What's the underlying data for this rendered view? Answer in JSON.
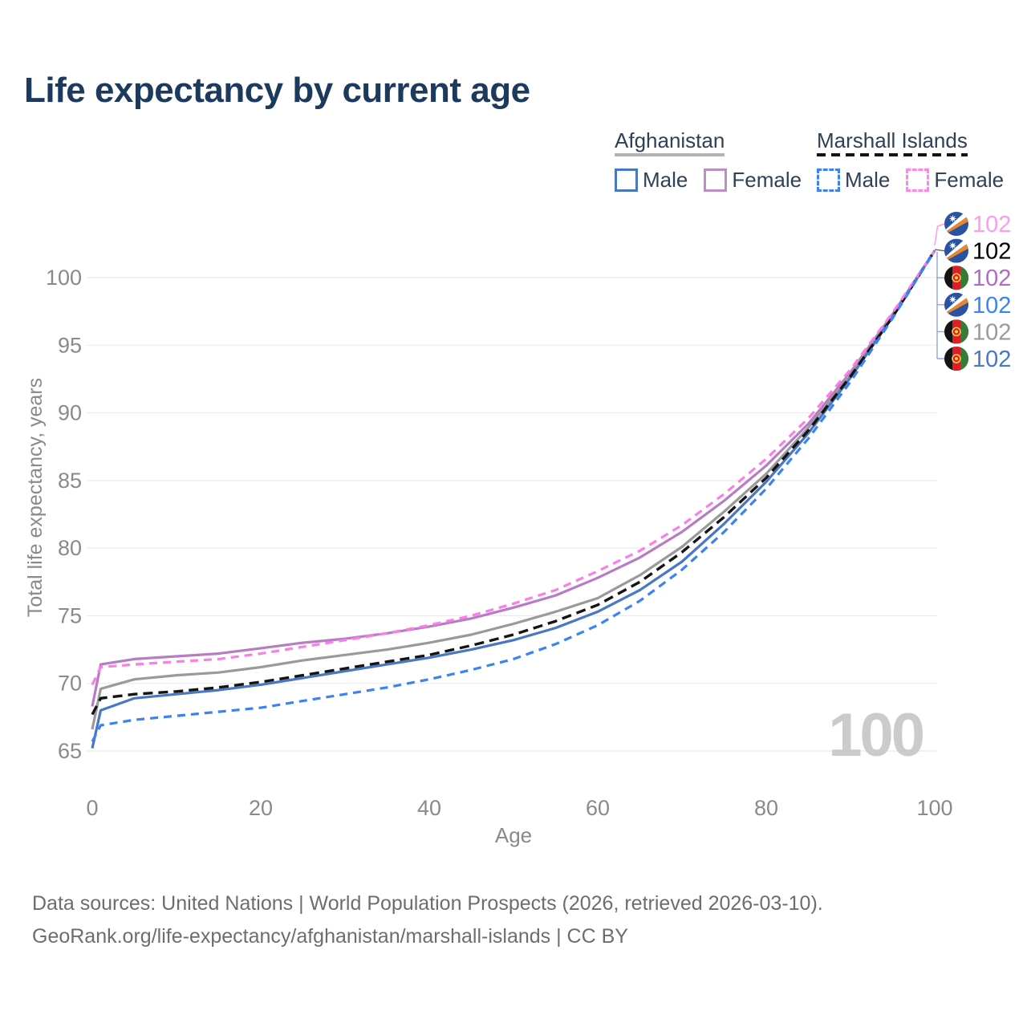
{
  "title": "Life expectancy by current age",
  "legend": {
    "groups": [
      {
        "label": "Afghanistan",
        "underline_style": "solid",
        "underline_color": "#b3b3b3",
        "items": [
          {
            "label": "Male",
            "color": "#4a77c4",
            "dash": false
          },
          {
            "label": "Female",
            "color": "#c08cc8",
            "dash": false
          }
        ]
      },
      {
        "label": "Marshall Islands",
        "underline_style": "dashed",
        "underline_color": "#141414",
        "items": [
          {
            "label": "Male",
            "color": "#3b82f7",
            "dash": true
          },
          {
            "label": "Female",
            "color": "#ff85e8",
            "dash": true
          }
        ]
      }
    ]
  },
  "chart_data": {
    "type": "line",
    "title": "Life expectancy by current age",
    "xlabel": "Age",
    "ylabel": "Total life expectancy, years",
    "x": [
      0,
      1,
      5,
      10,
      15,
      20,
      25,
      30,
      35,
      40,
      45,
      50,
      55,
      60,
      65,
      70,
      75,
      80,
      85,
      90,
      95,
      100
    ],
    "xlim": [
      0,
      100
    ],
    "ylim": [
      63,
      104
    ],
    "xticks": [
      0,
      20,
      40,
      60,
      80,
      100
    ],
    "yticks": [
      65,
      70,
      75,
      80,
      85,
      90,
      95,
      100
    ],
    "grid": "horizontal",
    "grid_color": "#ebebeb",
    "axis_text_color": "#8a8a8a",
    "watermark": "100",
    "watermark_color": "#cbcbcb",
    "series": [
      {
        "name": "Afghanistan Female",
        "country": "Afghanistan",
        "sex": "female",
        "color": "#b77cc4",
        "dashed": false,
        "values": [
          68.3,
          71.4,
          71.8,
          72.0,
          72.2,
          72.6,
          73.0,
          73.3,
          73.7,
          74.2,
          74.8,
          75.6,
          76.5,
          77.8,
          79.3,
          81.2,
          83.5,
          86.1,
          89.2,
          93.0,
          97.3,
          102
        ]
      },
      {
        "name": "Afghanistan",
        "country": "Afghanistan",
        "sex": "total",
        "color": "#9a9a9a",
        "dashed": false,
        "values": [
          66.6,
          69.6,
          70.3,
          70.6,
          70.8,
          71.2,
          71.7,
          72.1,
          72.5,
          73.0,
          73.6,
          74.4,
          75.3,
          76.3,
          78.0,
          80.1,
          82.7,
          85.5,
          88.9,
          92.8,
          97.2,
          102
        ]
      },
      {
        "name": "Afghanistan Male",
        "country": "Afghanistan",
        "sex": "male",
        "color": "#4a77c4",
        "dashed": false,
        "values": [
          65.2,
          68.0,
          68.9,
          69.2,
          69.5,
          69.9,
          70.4,
          70.9,
          71.4,
          71.9,
          72.5,
          73.2,
          74.1,
          75.3,
          76.9,
          79.0,
          81.8,
          84.9,
          88.5,
          92.6,
          97.1,
          102
        ]
      },
      {
        "name": "Marshall Islands",
        "country": "Marshall Islands",
        "sex": "total",
        "color": "#141414",
        "dashed": true,
        "values": [
          67.7,
          68.9,
          69.2,
          69.4,
          69.7,
          70.1,
          70.6,
          71.1,
          71.6,
          72.1,
          72.8,
          73.6,
          74.6,
          75.8,
          77.5,
          79.7,
          82.3,
          85.2,
          88.7,
          92.7,
          97.1,
          102
        ]
      },
      {
        "name": "Marshall Islands Female",
        "country": "Marshall Islands",
        "sex": "female",
        "color": "#fb7de8",
        "dashed": true,
        "values": [
          69.9,
          71.2,
          71.4,
          71.6,
          71.8,
          72.2,
          72.7,
          73.2,
          73.7,
          74.3,
          75.0,
          75.9,
          76.9,
          78.3,
          79.8,
          81.7,
          84.0,
          86.6,
          89.6,
          93.2,
          97.4,
          102
        ]
      },
      {
        "name": "Marshall Islands Male",
        "country": "Marshall Islands",
        "sex": "male",
        "color": "#3b82f7",
        "dashed": true,
        "values": [
          65.7,
          66.9,
          67.3,
          67.6,
          67.9,
          68.2,
          68.7,
          69.2,
          69.7,
          70.3,
          71.0,
          71.8,
          72.9,
          74.3,
          76.1,
          78.4,
          81.2,
          84.4,
          88.1,
          92.3,
          97.0,
          102
        ]
      }
    ],
    "end_labels": [
      {
        "value": "102",
        "flag": "marshall-islands",
        "color": "#ff9ce8",
        "series": "Marshall Islands Female"
      },
      {
        "value": "102",
        "flag": "marshall-islands",
        "color": "#000000",
        "series": "Marshall Islands"
      },
      {
        "value": "102",
        "flag": "afghanistan",
        "color": "#b06cc0",
        "series": "Afghanistan Female"
      },
      {
        "value": "102",
        "flag": "marshall-islands",
        "color": "#3b82f7",
        "series": "Marshall Islands Male"
      },
      {
        "value": "102",
        "flag": "afghanistan",
        "color": "#9a9a9a",
        "series": "Afghanistan"
      },
      {
        "value": "102",
        "flag": "afghanistan",
        "color": "#4a77c4",
        "series": "Afghanistan Male"
      }
    ]
  },
  "footer": {
    "line1": "Data sources: United Nations | World Population Prospects (2026, retrieved 2026-03-10).",
    "line2": "GeoRank.org/life-expectancy/afghanistan/marshall-islands | CC BY"
  }
}
